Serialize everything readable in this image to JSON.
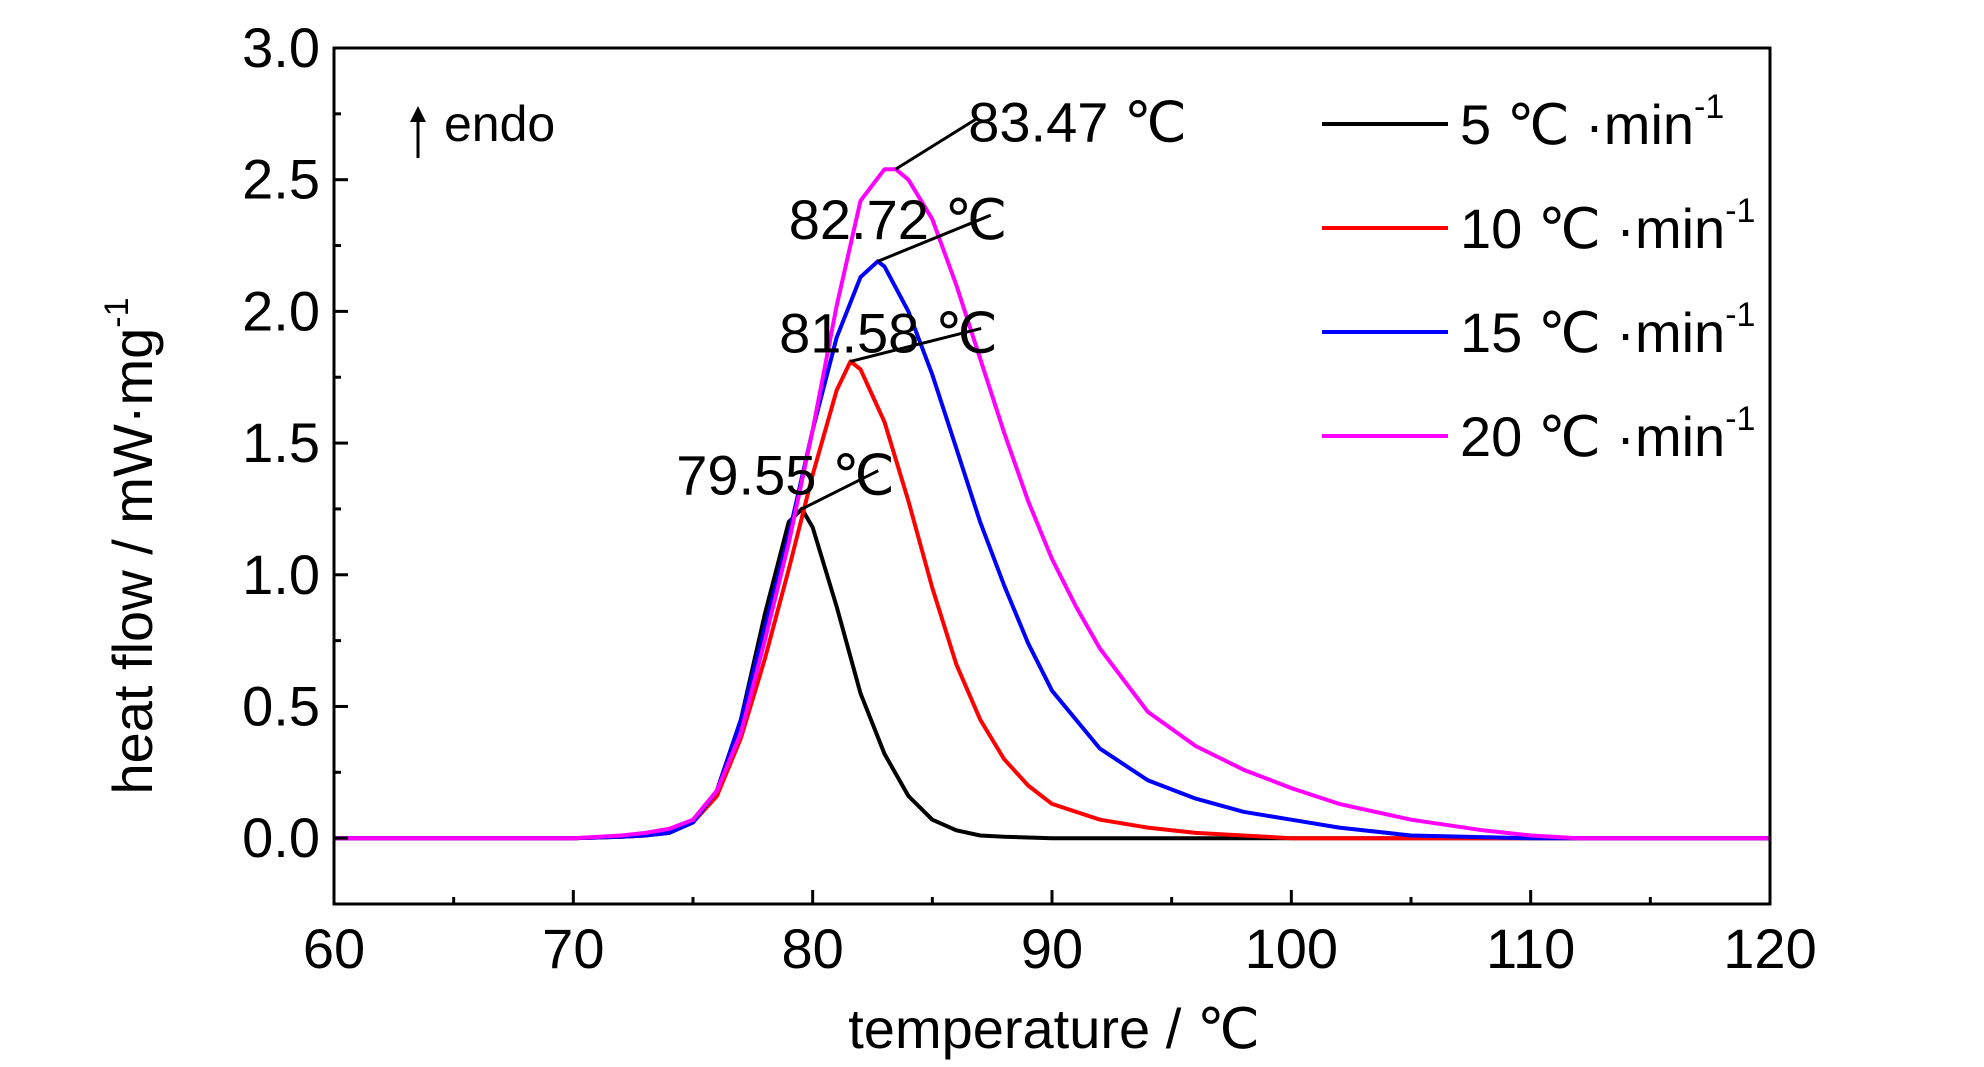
{
  "chart_data": {
    "type": "line",
    "xlabel": "temperature / ℃",
    "ylabel": "heat flow / mW·mg",
    "ylabel_superscript": "-1",
    "xlim": [
      60,
      120
    ],
    "ylim": [
      -0.25,
      3.0
    ],
    "xticks": [
      60,
      70,
      80,
      90,
      100,
      110,
      120
    ],
    "xtick_labels": [
      "60",
      "70",
      "80",
      "90",
      "100",
      "110",
      "120"
    ],
    "yticks": [
      0.0,
      0.5,
      1.0,
      1.5,
      2.0,
      2.5,
      3.0
    ],
    "ytick_labels": [
      "0.0",
      "0.5",
      "1.0",
      "1.5",
      "2.0",
      "2.5",
      "3.0"
    ],
    "grid": false,
    "legend_position": "top-right",
    "endo_label": "endo",
    "series": [
      {
        "name": "5 ℃ ·min",
        "name_superscript": "-1",
        "color": "#000000",
        "x": [
          60,
          65,
          70,
          72,
          73,
          74,
          75,
          76,
          77,
          78,
          79,
          79.55,
          80,
          81,
          82,
          83,
          84,
          85,
          86,
          87,
          88,
          90,
          95,
          100,
          105,
          110,
          120
        ],
        "y": [
          0.0,
          0.0,
          0.0,
          0.005,
          0.01,
          0.02,
          0.06,
          0.18,
          0.45,
          0.85,
          1.2,
          1.25,
          1.18,
          0.88,
          0.55,
          0.32,
          0.16,
          0.07,
          0.03,
          0.01,
          0.005,
          0.0,
          0.0,
          0.0,
          0.0,
          0.0,
          0.0
        ]
      },
      {
        "name": "10 ℃ ·min",
        "name_superscript": "-1",
        "color": "#ff0000",
        "x": [
          60,
          65,
          70,
          72,
          73,
          74,
          75,
          76,
          77,
          78,
          79,
          80,
          81,
          81.58,
          82,
          83,
          84,
          85,
          86,
          87,
          88,
          89,
          90,
          92,
          94,
          96,
          98,
          100,
          105,
          110,
          120
        ],
        "y": [
          0.0,
          0.0,
          0.0,
          0.005,
          0.01,
          0.025,
          0.06,
          0.16,
          0.38,
          0.68,
          1.02,
          1.38,
          1.7,
          1.81,
          1.78,
          1.58,
          1.28,
          0.95,
          0.66,
          0.45,
          0.3,
          0.2,
          0.13,
          0.07,
          0.04,
          0.02,
          0.01,
          0.0,
          0.0,
          0.0,
          0.0
        ]
      },
      {
        "name": "15 ℃ ·min",
        "name_superscript": "-1",
        "color": "#0000ff",
        "x": [
          60,
          65,
          70,
          72,
          73,
          74,
          75,
          76,
          77,
          78,
          79,
          80,
          81,
          82,
          82.72,
          83,
          84,
          85,
          86,
          87,
          88,
          89,
          90,
          92,
          94,
          96,
          98,
          100,
          102,
          105,
          110,
          120
        ],
        "y": [
          0.0,
          0.0,
          0.0,
          0.005,
          0.01,
          0.02,
          0.06,
          0.18,
          0.45,
          0.8,
          1.15,
          1.55,
          1.9,
          2.13,
          2.19,
          2.17,
          2.0,
          1.76,
          1.48,
          1.2,
          0.96,
          0.74,
          0.56,
          0.34,
          0.22,
          0.15,
          0.1,
          0.07,
          0.04,
          0.01,
          0.0,
          0.0
        ]
      },
      {
        "name": "20 ℃ ·min",
        "name_superscript": "-1",
        "color": "#ff00ff",
        "x": [
          60,
          65,
          70,
          72,
          73,
          74,
          75,
          76,
          77,
          78,
          79,
          80,
          81,
          82,
          83,
          83.47,
          84,
          85,
          86,
          87,
          88,
          89,
          90,
          91,
          92,
          94,
          96,
          98,
          100,
          102,
          105,
          108,
          110,
          112,
          115,
          120
        ],
        "y": [
          0.0,
          0.0,
          0.0,
          0.01,
          0.02,
          0.035,
          0.07,
          0.18,
          0.4,
          0.75,
          1.12,
          1.55,
          2.02,
          2.42,
          2.54,
          2.54,
          2.5,
          2.35,
          2.1,
          1.82,
          1.54,
          1.28,
          1.06,
          0.88,
          0.72,
          0.48,
          0.35,
          0.26,
          0.19,
          0.13,
          0.07,
          0.03,
          0.01,
          0.0,
          0.0,
          0.0
        ]
      }
    ],
    "annotations": [
      {
        "text": "79.55 ℃",
        "x": 79.55,
        "y": 1.25,
        "label_x": 74.3,
        "label_y": 1.38
      },
      {
        "text": "81.58 ℃",
        "x": 81.58,
        "y": 1.81,
        "label_x": 78.6,
        "label_y": 1.92
      },
      {
        "text": "82.72 ℃",
        "x": 82.72,
        "y": 2.19,
        "label_x": 79.0,
        "label_y": 2.35
      },
      {
        "text": "83.47 ℃",
        "x": 83.47,
        "y": 2.54,
        "label_x": 86.5,
        "label_y": 2.72
      }
    ]
  }
}
